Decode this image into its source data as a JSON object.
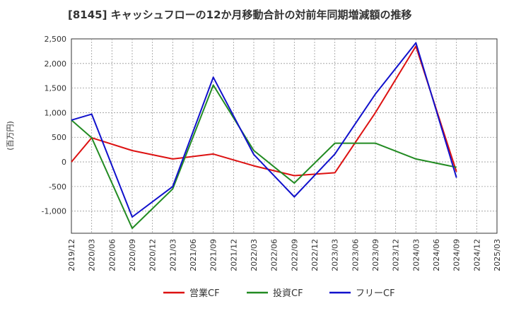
{
  "chart_data": {
    "type": "line",
    "title": "[8145]  キャッシュフローの12か月移動合計の対前年同期増減額の推移",
    "ylabel": "(百万円)",
    "xlabel": "",
    "ylim": [
      -1450,
      2500
    ],
    "yticks": [
      2500,
      2000,
      1500,
      1000,
      500,
      0,
      -500,
      -1000
    ],
    "ytick_labels": [
      "2,500",
      "2,000",
      "1,500",
      "1,000",
      "500",
      "0",
      "-500",
      "-1,000"
    ],
    "x_labels": [
      "2019/12",
      "2020/03",
      "2020/06",
      "2020/09",
      "2020/12",
      "2021/03",
      "2021/06",
      "2021/09",
      "2021/12",
      "2022/03",
      "2022/06",
      "2022/09",
      "2022/12",
      "2023/03",
      "2023/06",
      "2023/09",
      "2023/12",
      "2024/03",
      "2024/06",
      "2024/09",
      "2024/12",
      "2025/03"
    ],
    "grid": true,
    "legend_position": "bottom",
    "series": [
      {
        "name": "営業CF",
        "color": "#dd1111",
        "points": [
          {
            "i": 0,
            "v": 0
          },
          {
            "i": 1,
            "v": 490
          },
          {
            "i": 3,
            "v": 230
          },
          {
            "i": 5,
            "v": 60
          },
          {
            "i": 7,
            "v": 160
          },
          {
            "i": 9,
            "v": -80
          },
          {
            "i": 11,
            "v": -280
          },
          {
            "i": 13,
            "v": -220
          },
          {
            "i": 15,
            "v": 1000
          },
          {
            "i": 17,
            "v": 2350
          },
          {
            "i": 19,
            "v": -200
          }
        ]
      },
      {
        "name": "投資CF",
        "color": "#228b22",
        "points": [
          {
            "i": 0,
            "v": 850
          },
          {
            "i": 1,
            "v": 490
          },
          {
            "i": 3,
            "v": -1350
          },
          {
            "i": 5,
            "v": -550
          },
          {
            "i": 7,
            "v": 1560
          },
          {
            "i": 9,
            "v": 230
          },
          {
            "i": 11,
            "v": -430
          },
          {
            "i": 13,
            "v": 380
          },
          {
            "i": 15,
            "v": 380
          },
          {
            "i": 17,
            "v": 60
          },
          {
            "i": 19,
            "v": -110
          }
        ]
      },
      {
        "name": "フリーCF",
        "color": "#1111cc",
        "points": [
          {
            "i": 0,
            "v": 850
          },
          {
            "i": 1,
            "v": 970
          },
          {
            "i": 3,
            "v": -1120
          },
          {
            "i": 5,
            "v": -500
          },
          {
            "i": 7,
            "v": 1720
          },
          {
            "i": 9,
            "v": 150
          },
          {
            "i": 11,
            "v": -710
          },
          {
            "i": 13,
            "v": 160
          },
          {
            "i": 15,
            "v": 1380
          },
          {
            "i": 17,
            "v": 2420
          },
          {
            "i": 19,
            "v": -320
          }
        ]
      }
    ]
  }
}
